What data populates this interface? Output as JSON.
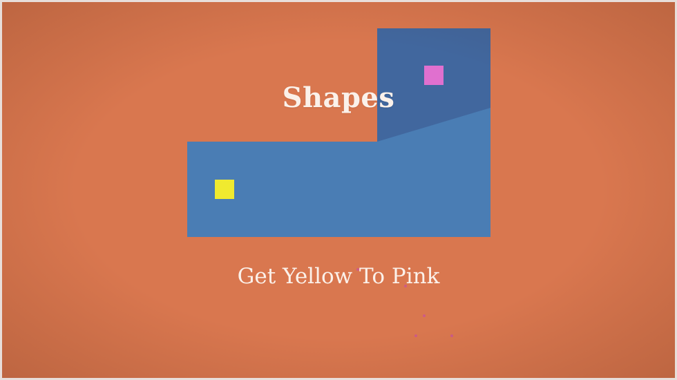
{
  "game": {
    "title": "Shapes",
    "instruction": "Get Yellow To Pink"
  },
  "colors": {
    "background": "#d9774f",
    "level_fill": "#4a7db4",
    "level_upper": "#41679e",
    "player": "#f0ea2f",
    "goal": "#e070cf",
    "text": "#fbf1ea"
  },
  "pieces": {
    "player_color_name": "yellow",
    "goal_color_name": "pink"
  }
}
